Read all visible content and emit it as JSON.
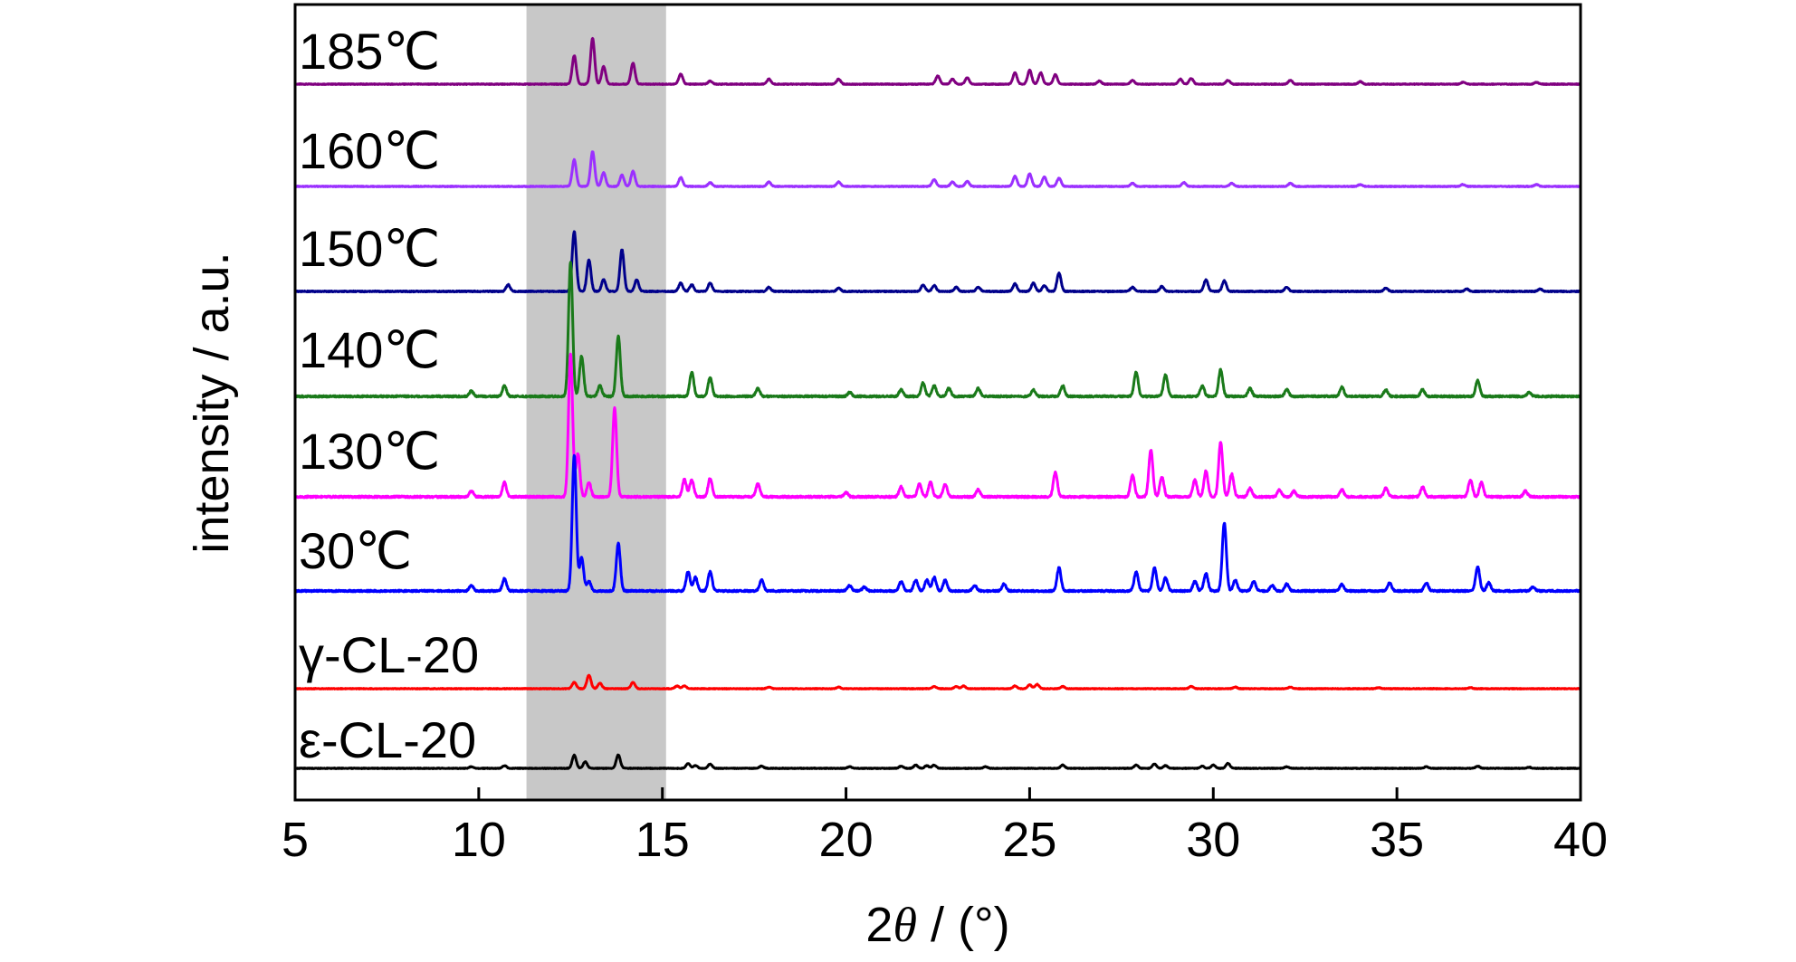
{
  "chart_data": {
    "type": "line",
    "title": "",
    "xlabel_prefix": "2",
    "xlabel_symbol": "θ",
    "xlabel_suffix": " / (°)",
    "ylabel": "intensity / a.u.",
    "xlim": [
      5,
      40
    ],
    "x_ticks": [
      5,
      10,
      15,
      20,
      25,
      30,
      35,
      40
    ],
    "y_ticks": [],
    "grid": false,
    "highlight_region": {
      "x_start": 11.3,
      "x_end": 15.1,
      "color": "#c8c8c8"
    },
    "series": [
      {
        "name": "185℃",
        "color": "#800080",
        "peaks": [
          [
            12.6,
            0.45
          ],
          [
            13.1,
            0.72
          ],
          [
            13.4,
            0.28
          ],
          [
            14.2,
            0.33
          ],
          [
            15.5,
            0.16
          ],
          [
            16.3,
            0.05
          ],
          [
            17.9,
            0.08
          ],
          [
            19.8,
            0.08
          ],
          [
            22.5,
            0.13
          ],
          [
            22.9,
            0.08
          ],
          [
            23.3,
            0.1
          ],
          [
            24.6,
            0.18
          ],
          [
            25.0,
            0.22
          ],
          [
            25.3,
            0.18
          ],
          [
            25.7,
            0.15
          ],
          [
            26.9,
            0.05
          ],
          [
            27.8,
            0.06
          ],
          [
            29.1,
            0.08
          ],
          [
            29.4,
            0.09
          ],
          [
            30.4,
            0.06
          ],
          [
            32.1,
            0.06
          ],
          [
            34.0,
            0.04
          ],
          [
            36.8,
            0.03
          ],
          [
            38.8,
            0.03
          ]
        ]
      },
      {
        "name": "160℃",
        "color": "#9b30ff",
        "peaks": [
          [
            12.6,
            0.42
          ],
          [
            13.1,
            0.55
          ],
          [
            13.4,
            0.22
          ],
          [
            13.9,
            0.18
          ],
          [
            14.2,
            0.24
          ],
          [
            15.5,
            0.14
          ],
          [
            16.3,
            0.06
          ],
          [
            17.9,
            0.07
          ],
          [
            19.8,
            0.07
          ],
          [
            22.4,
            0.11
          ],
          [
            22.9,
            0.07
          ],
          [
            23.3,
            0.08
          ],
          [
            24.6,
            0.16
          ],
          [
            25.0,
            0.2
          ],
          [
            25.4,
            0.15
          ],
          [
            25.8,
            0.13
          ],
          [
            27.8,
            0.05
          ],
          [
            29.2,
            0.06
          ],
          [
            30.5,
            0.05
          ],
          [
            32.1,
            0.05
          ],
          [
            34.0,
            0.03
          ],
          [
            36.8,
            0.03
          ],
          [
            38.8,
            0.03
          ]
        ]
      },
      {
        "name": "150℃",
        "color": "#00008b",
        "peaks": [
          [
            10.8,
            0.08
          ],
          [
            12.6,
            0.72
          ],
          [
            13.0,
            0.38
          ],
          [
            13.4,
            0.14
          ],
          [
            13.9,
            0.5
          ],
          [
            14.3,
            0.14
          ],
          [
            15.5,
            0.1
          ],
          [
            15.8,
            0.08
          ],
          [
            16.3,
            0.1
          ],
          [
            17.9,
            0.05
          ],
          [
            19.8,
            0.04
          ],
          [
            22.1,
            0.08
          ],
          [
            22.4,
            0.07
          ],
          [
            23.0,
            0.05
          ],
          [
            23.6,
            0.05
          ],
          [
            24.6,
            0.09
          ],
          [
            25.1,
            0.1
          ],
          [
            25.4,
            0.07
          ],
          [
            25.8,
            0.22
          ],
          [
            27.8,
            0.05
          ],
          [
            28.6,
            0.06
          ],
          [
            29.8,
            0.14
          ],
          [
            30.3,
            0.13
          ],
          [
            32.0,
            0.05
          ],
          [
            34.7,
            0.04
          ],
          [
            36.9,
            0.03
          ],
          [
            38.9,
            0.03
          ]
        ]
      },
      {
        "name": "140℃",
        "color": "#1a7a1a",
        "peaks": [
          [
            9.8,
            0.04
          ],
          [
            10.7,
            0.08
          ],
          [
            12.5,
            1.0
          ],
          [
            12.8,
            0.3
          ],
          [
            13.3,
            0.08
          ],
          [
            13.8,
            0.45
          ],
          [
            15.8,
            0.18
          ],
          [
            16.3,
            0.14
          ],
          [
            17.6,
            0.06
          ],
          [
            20.1,
            0.03
          ],
          [
            21.5,
            0.05
          ],
          [
            22.1,
            0.1
          ],
          [
            22.4,
            0.08
          ],
          [
            22.8,
            0.06
          ],
          [
            23.6,
            0.06
          ],
          [
            25.1,
            0.05
          ],
          [
            25.9,
            0.08
          ],
          [
            27.9,
            0.18
          ],
          [
            28.7,
            0.16
          ],
          [
            29.7,
            0.08
          ],
          [
            30.2,
            0.2
          ],
          [
            31.0,
            0.06
          ],
          [
            32.0,
            0.05
          ],
          [
            33.5,
            0.07
          ],
          [
            34.7,
            0.05
          ],
          [
            35.7,
            0.05
          ],
          [
            37.2,
            0.12
          ],
          [
            38.6,
            0.03
          ]
        ]
      },
      {
        "name": "130℃",
        "color": "#ff00ff",
        "peaks": [
          [
            9.8,
            0.04
          ],
          [
            10.7,
            0.1
          ],
          [
            12.5,
            1.0
          ],
          [
            12.7,
            0.3
          ],
          [
            13.0,
            0.1
          ],
          [
            13.7,
            0.62
          ],
          [
            15.6,
            0.12
          ],
          [
            15.8,
            0.12
          ],
          [
            16.3,
            0.13
          ],
          [
            17.6,
            0.09
          ],
          [
            20.0,
            0.03
          ],
          [
            21.5,
            0.07
          ],
          [
            22.0,
            0.09
          ],
          [
            22.3,
            0.1
          ],
          [
            22.7,
            0.09
          ],
          [
            23.6,
            0.05
          ],
          [
            25.7,
            0.17
          ],
          [
            27.8,
            0.15
          ],
          [
            28.3,
            0.33
          ],
          [
            28.6,
            0.14
          ],
          [
            29.5,
            0.12
          ],
          [
            29.8,
            0.18
          ],
          [
            30.2,
            0.38
          ],
          [
            30.5,
            0.16
          ],
          [
            31.0,
            0.06
          ],
          [
            31.8,
            0.05
          ],
          [
            32.2,
            0.04
          ],
          [
            33.5,
            0.05
          ],
          [
            34.7,
            0.06
          ],
          [
            35.7,
            0.07
          ],
          [
            37.0,
            0.12
          ],
          [
            37.3,
            0.1
          ],
          [
            38.5,
            0.04
          ]
        ]
      },
      {
        "name": "30℃",
        "color": "#0000ff",
        "peaks": [
          [
            9.8,
            0.04
          ],
          [
            10.7,
            0.09
          ],
          [
            12.6,
            1.0
          ],
          [
            12.8,
            0.25
          ],
          [
            13.0,
            0.07
          ],
          [
            13.8,
            0.35
          ],
          [
            15.7,
            0.14
          ],
          [
            15.9,
            0.1
          ],
          [
            16.3,
            0.14
          ],
          [
            17.7,
            0.08
          ],
          [
            20.1,
            0.04
          ],
          [
            20.5,
            0.03
          ],
          [
            21.5,
            0.07
          ],
          [
            21.9,
            0.08
          ],
          [
            22.2,
            0.08
          ],
          [
            22.4,
            0.1
          ],
          [
            22.7,
            0.08
          ],
          [
            23.5,
            0.04
          ],
          [
            24.3,
            0.05
          ],
          [
            25.8,
            0.17
          ],
          [
            27.9,
            0.14
          ],
          [
            28.4,
            0.17
          ],
          [
            28.7,
            0.1
          ],
          [
            29.5,
            0.07
          ],
          [
            29.8,
            0.13
          ],
          [
            30.3,
            0.5
          ],
          [
            30.6,
            0.08
          ],
          [
            31.1,
            0.07
          ],
          [
            31.6,
            0.04
          ],
          [
            32.0,
            0.05
          ],
          [
            33.5,
            0.05
          ],
          [
            34.8,
            0.06
          ],
          [
            35.8,
            0.06
          ],
          [
            37.2,
            0.18
          ],
          [
            37.5,
            0.06
          ],
          [
            38.7,
            0.03
          ]
        ]
      },
      {
        "name": "γ-CL-20",
        "color": "#ff0000",
        "peaks": [
          [
            12.6,
            0.12
          ],
          [
            13.0,
            0.25
          ],
          [
            13.3,
            0.1
          ],
          [
            14.2,
            0.12
          ],
          [
            15.4,
            0.05
          ],
          [
            15.6,
            0.05
          ],
          [
            17.9,
            0.03
          ],
          [
            19.8,
            0.03
          ],
          [
            22.4,
            0.04
          ],
          [
            23.0,
            0.04
          ],
          [
            23.2,
            0.05
          ],
          [
            24.6,
            0.05
          ],
          [
            25.0,
            0.07
          ],
          [
            25.2,
            0.08
          ],
          [
            25.9,
            0.04
          ],
          [
            29.4,
            0.04
          ],
          [
            30.6,
            0.03
          ],
          [
            32.1,
            0.03
          ],
          [
            34.5,
            0.02
          ],
          [
            37.0,
            0.02
          ]
        ]
      },
      {
        "name": "ε-CL-20",
        "color": "#000000",
        "peaks": [
          [
            9.8,
            0.03
          ],
          [
            10.7,
            0.05
          ],
          [
            12.6,
            0.24
          ],
          [
            12.9,
            0.12
          ],
          [
            13.8,
            0.25
          ],
          [
            15.7,
            0.09
          ],
          [
            15.9,
            0.05
          ],
          [
            16.3,
            0.08
          ],
          [
            17.7,
            0.04
          ],
          [
            20.1,
            0.03
          ],
          [
            21.5,
            0.04
          ],
          [
            21.9,
            0.06
          ],
          [
            22.2,
            0.05
          ],
          [
            22.4,
            0.06
          ],
          [
            23.8,
            0.03
          ],
          [
            25.9,
            0.06
          ],
          [
            27.9,
            0.06
          ],
          [
            28.4,
            0.08
          ],
          [
            28.7,
            0.05
          ],
          [
            29.7,
            0.04
          ],
          [
            30.0,
            0.06
          ],
          [
            30.4,
            0.09
          ],
          [
            32.0,
            0.03
          ],
          [
            35.8,
            0.03
          ],
          [
            37.2,
            0.04
          ],
          [
            38.6,
            0.02
          ]
        ]
      }
    ]
  }
}
